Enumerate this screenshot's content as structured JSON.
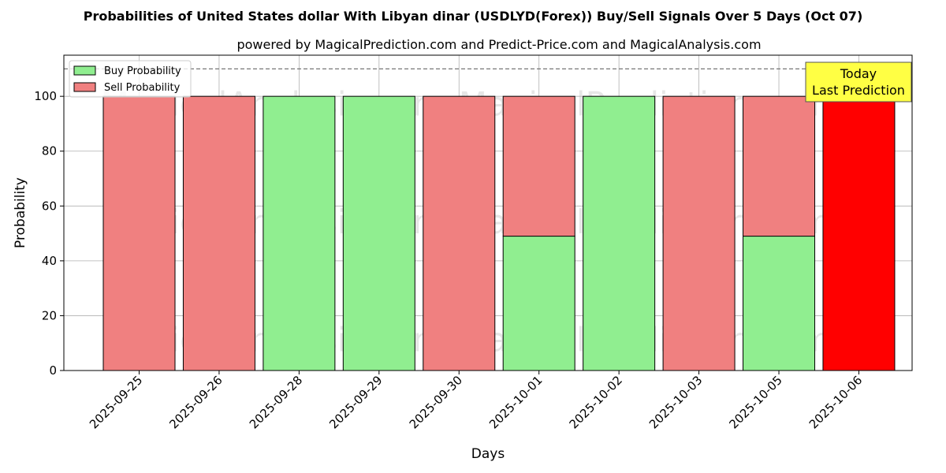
{
  "chart_data": {
    "type": "bar",
    "stacked": true,
    "title": "Probabilities of United States dollar With Libyan dinar (USDLYD(Forex)) Buy/Sell Signals Over 5 Days (Oct 07)",
    "subtitle": "powered by MagicalPrediction.com and Predict-Price.com and MagicalAnalysis.com",
    "xlabel": "Days",
    "ylabel": "Probability",
    "ylim": [
      0,
      115
    ],
    "yticks": [
      0,
      20,
      40,
      60,
      80,
      100
    ],
    "grid": true,
    "legend_position": "top-left",
    "reference_line": 110,
    "categories": [
      "2025-09-25",
      "2025-09-26",
      "2025-09-28",
      "2025-09-29",
      "2025-09-30",
      "2025-10-01",
      "2025-10-02",
      "2025-10-03",
      "2025-10-05",
      "2025-10-06"
    ],
    "series": [
      {
        "name": "Buy Probability",
        "color": "#90ee90",
        "values": [
          0,
          0,
          100,
          100,
          0,
          49,
          100,
          0,
          49,
          0
        ]
      },
      {
        "name": "Sell Probability",
        "color": "#f08080",
        "values": [
          100,
          100,
          0,
          0,
          100,
          51,
          0,
          100,
          51,
          100
        ]
      }
    ],
    "highlight": {
      "index": 9,
      "color": "#ff0000"
    },
    "annotation": {
      "lines": [
        "Today",
        "Last Prediction"
      ],
      "color": "#ffff44"
    },
    "watermarks": [
      "MagicalAnalysis.com",
      "MagicalPrediction.com"
    ]
  }
}
